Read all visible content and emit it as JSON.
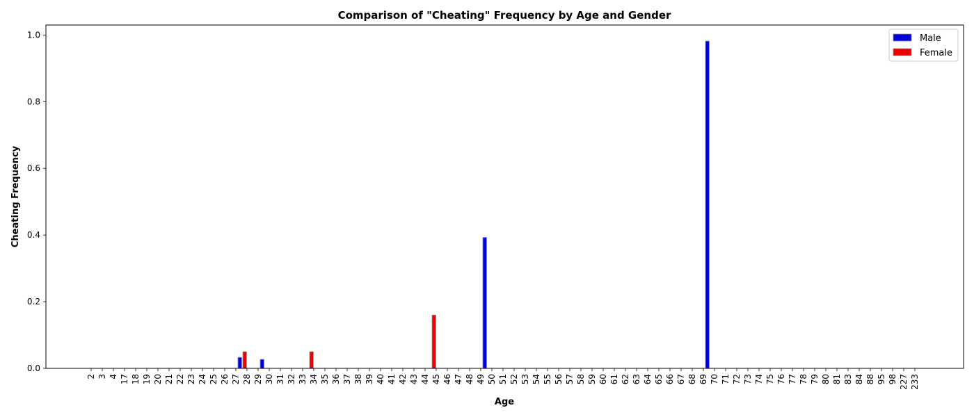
{
  "chart_data": {
    "type": "bar",
    "title": "Comparison of \"Cheating\" Frequency by Age and Gender",
    "xlabel": "Age",
    "ylabel": "Cheating Frequency",
    "ylim": [
      0,
      1.03
    ],
    "yticks": [
      "0.0",
      "0.2",
      "0.4",
      "0.6",
      "0.8",
      "1.0"
    ],
    "grid": false,
    "legend_position": "top-right",
    "categories": [
      "2",
      "3",
      "4",
      "17",
      "18",
      "19",
      "20",
      "21",
      "22",
      "23",
      "24",
      "25",
      "26",
      "27",
      "28",
      "29",
      "30",
      "31",
      "32",
      "33",
      "34",
      "35",
      "36",
      "37",
      "38",
      "39",
      "40",
      "41",
      "42",
      "43",
      "44",
      "45",
      "46",
      "47",
      "48",
      "49",
      "50",
      "51",
      "52",
      "53",
      "54",
      "55",
      "56",
      "57",
      "58",
      "59",
      "60",
      "61",
      "62",
      "63",
      "64",
      "65",
      "66",
      "67",
      "68",
      "69",
      "70",
      "71",
      "72",
      "73",
      "74",
      "75",
      "76",
      "77",
      "78",
      "79",
      "80",
      "81",
      "83",
      "84",
      "88",
      "95",
      "98",
      "227",
      "233"
    ],
    "series": [
      {
        "name": "Male",
        "color": "#0000dd",
        "values": [
          0,
          0,
          0,
          0,
          0,
          0,
          0,
          0,
          0,
          0,
          0,
          0,
          0,
          0.033,
          0,
          0.027,
          0,
          0,
          0,
          0,
          0,
          0,
          0,
          0,
          0,
          0,
          0,
          0,
          0,
          0,
          0,
          0,
          0,
          0,
          0,
          0.393,
          0,
          0,
          0,
          0,
          0,
          0,
          0,
          0,
          0,
          0,
          0,
          0,
          0,
          0,
          0,
          0,
          0,
          0,
          0,
          0.982,
          0,
          0,
          0,
          0,
          0,
          0,
          0,
          0,
          0,
          0,
          0,
          0,
          0,
          0,
          0,
          0,
          0,
          0,
          0
        ]
      },
      {
        "name": "Female",
        "color": "#ee0000",
        "values": [
          0,
          0,
          0,
          0,
          0,
          0,
          0,
          0,
          0,
          0,
          0,
          0,
          0,
          0,
          0.05,
          0,
          0,
          0,
          0,
          0,
          0.05,
          0,
          0,
          0,
          0,
          0,
          0,
          0,
          0,
          0,
          0,
          0.16,
          0,
          0,
          0,
          0,
          0,
          0,
          0,
          0,
          0,
          0,
          0,
          0,
          0,
          0,
          0,
          0,
          0,
          0,
          0,
          0,
          0,
          0,
          0,
          0,
          0,
          0,
          0,
          0,
          0,
          0,
          0,
          0,
          0,
          0,
          0,
          0,
          0,
          0,
          0,
          0,
          0,
          0,
          0
        ]
      }
    ]
  }
}
